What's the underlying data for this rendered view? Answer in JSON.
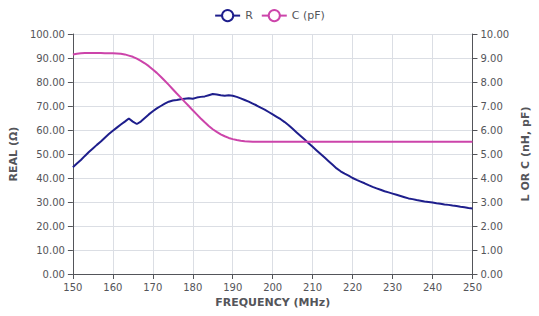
{
  "chart_data": {
    "type": "line",
    "xlabel": "FREQUENCY (MHz)",
    "ylabel": "REAL (Ω)",
    "y2label": "L OR C (nH, pF)",
    "x": [
      150,
      151,
      152,
      153,
      154,
      155,
      156,
      157,
      158,
      159,
      160,
      161,
      162,
      163,
      164,
      165,
      166,
      167,
      168,
      169,
      170,
      171,
      172,
      173,
      174,
      175,
      176,
      177,
      178,
      179,
      180,
      181,
      182,
      183,
      184,
      185,
      186,
      187,
      188,
      189,
      190,
      191,
      192,
      193,
      194,
      195,
      196,
      197,
      198,
      199,
      200,
      201,
      202,
      203,
      204,
      205,
      206,
      207,
      208,
      209,
      210,
      211,
      212,
      213,
      214,
      215,
      216,
      217,
      218,
      219,
      220,
      221,
      222,
      223,
      224,
      225,
      226,
      227,
      228,
      229,
      230,
      231,
      232,
      233,
      234,
      235,
      236,
      237,
      238,
      239,
      240,
      241,
      242,
      243,
      244,
      245,
      246,
      247,
      248,
      249,
      250
    ],
    "series": [
      {
        "name": "R",
        "color": "#1e1e8c",
        "values": [
          44.5,
          46.0,
          47.5,
          49.2,
          50.8,
          52.3,
          53.8,
          55.2,
          56.8,
          58.3,
          59.7,
          61.0,
          62.3,
          63.5,
          64.8,
          63.5,
          62.5,
          63.5,
          65.0,
          66.5,
          67.8,
          69.0,
          70.0,
          71.0,
          71.8,
          72.3,
          72.5,
          72.8,
          73.0,
          73.2,
          73.0,
          73.5,
          73.8,
          74.0,
          74.5,
          75.0,
          74.8,
          74.5,
          74.3,
          74.5,
          74.3,
          73.8,
          73.2,
          72.5,
          71.8,
          71.0,
          70.2,
          69.3,
          68.5,
          67.5,
          66.5,
          65.5,
          64.5,
          63.3,
          62.0,
          60.5,
          59.0,
          57.5,
          56.0,
          54.5,
          53.0,
          51.5,
          50.0,
          48.5,
          47.0,
          45.5,
          44.0,
          42.8,
          41.8,
          41.0,
          40.0,
          39.2,
          38.5,
          37.8,
          37.0,
          36.3,
          35.7,
          35.1,
          34.5,
          34.0,
          33.5,
          33.0,
          32.5,
          32.0,
          31.5,
          31.2,
          30.8,
          30.5,
          30.2,
          30.0,
          29.8,
          29.5,
          29.3,
          29.0,
          28.8,
          28.5,
          28.3,
          28.0,
          27.8,
          27.5,
          27.3
        ]
      },
      {
        "name": "C (pF)",
        "color": "#cc44aa",
        "axis": "y2",
        "values": [
          9.15,
          9.18,
          9.2,
          9.21,
          9.21,
          9.21,
          9.21,
          9.21,
          9.2,
          9.2,
          9.2,
          9.19,
          9.18,
          9.15,
          9.1,
          9.05,
          8.97,
          8.88,
          8.78,
          8.66,
          8.52,
          8.38,
          8.22,
          8.05,
          7.88,
          7.7,
          7.52,
          7.35,
          7.17,
          7.0,
          6.82,
          6.65,
          6.48,
          6.32,
          6.17,
          6.03,
          5.92,
          5.82,
          5.74,
          5.67,
          5.62,
          5.58,
          5.55,
          5.53,
          5.52,
          5.51,
          5.51,
          5.51,
          5.51,
          5.51,
          5.51,
          5.51,
          5.51,
          5.51,
          5.51,
          5.51,
          5.51,
          5.51,
          5.51,
          5.51,
          5.51,
          5.51,
          5.51,
          5.51,
          5.51,
          5.51,
          5.51,
          5.51,
          5.51,
          5.51,
          5.51,
          5.51,
          5.51,
          5.51,
          5.51,
          5.51,
          5.51,
          5.51,
          5.51,
          5.51,
          5.51,
          5.51,
          5.51,
          5.51,
          5.51,
          5.51,
          5.51,
          5.51,
          5.51,
          5.51,
          5.51,
          5.51,
          5.51,
          5.51,
          5.51,
          5.51,
          5.51,
          5.51,
          5.51,
          5.51,
          5.51
        ]
      }
    ],
    "xlim": [
      150,
      250
    ],
    "xticks": [
      150,
      160,
      170,
      180,
      190,
      200,
      210,
      220,
      230,
      240,
      250
    ],
    "ylim": [
      0,
      100
    ],
    "yticks": [
      {
        "value": 0,
        "label": "0.00"
      },
      {
        "value": 10,
        "label": "10.00"
      },
      {
        "value": 20,
        "label": "20.00"
      },
      {
        "value": 30,
        "label": "30.00"
      },
      {
        "value": 40,
        "label": "40.00"
      },
      {
        "value": 50,
        "label": "50.00"
      },
      {
        "value": 60,
        "label": "60.00"
      },
      {
        "value": 70,
        "label": "70.00"
      },
      {
        "value": 80,
        "label": "80.00"
      },
      {
        "value": 90,
        "label": "90.00"
      },
      {
        "value": 100,
        "label": "100.00"
      }
    ],
    "y2lim": [
      0,
      10
    ],
    "y2ticks": [
      {
        "value": 0,
        "label": "0.00"
      },
      {
        "value": 1,
        "label": "1.00"
      },
      {
        "value": 2,
        "label": "2.00"
      },
      {
        "value": 3,
        "label": "3.00"
      },
      {
        "value": 4,
        "label": "4.00"
      },
      {
        "value": 5,
        "label": "5.00"
      },
      {
        "value": 6,
        "label": "6.00"
      },
      {
        "value": 7,
        "label": "7.00"
      },
      {
        "value": 8,
        "label": "8.00"
      },
      {
        "value": 9,
        "label": "9.00"
      },
      {
        "value": 10,
        "label": "10.00"
      }
    ],
    "grid": true,
    "legend": "top"
  }
}
